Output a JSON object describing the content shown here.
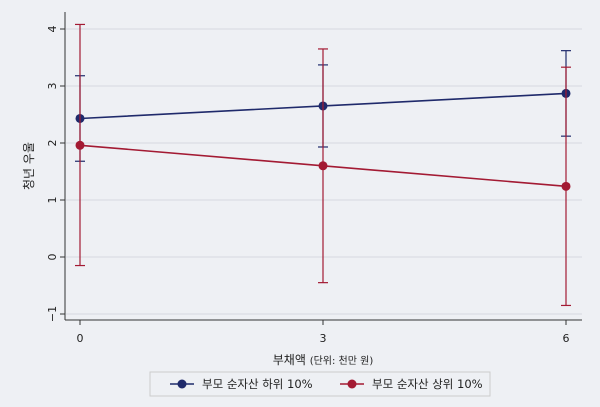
{
  "chart_data": {
    "type": "line",
    "title": "",
    "xlabel": "부채액",
    "xlabel_unit": "(단위: 천만 원)",
    "ylabel": "청년 우울",
    "x": [
      0,
      3,
      6
    ],
    "x_ticks": [
      "0",
      "3",
      "6"
    ],
    "y_ticks": [
      "-1",
      "0",
      "1",
      "2",
      "3",
      "4"
    ],
    "xlim": [
      0,
      6
    ],
    "ylim": [
      -1,
      4
    ],
    "grid": true,
    "legend_position": "bottom",
    "series": [
      {
        "name": "부모 순자산 하위 10%",
        "color": "#1f2a6b",
        "values": [
          2.43,
          2.65,
          2.87
        ],
        "ci_low": [
          1.68,
          1.93,
          2.12
        ],
        "ci_high": [
          3.18,
          3.37,
          3.62
        ]
      },
      {
        "name": "부모 순자산 상위 10%",
        "color": "#a31a33",
        "values": [
          1.96,
          1.6,
          1.24
        ],
        "ci_low": [
          -0.15,
          -0.45,
          -0.85
        ],
        "ci_high": [
          4.08,
          3.65,
          3.33
        ]
      }
    ]
  }
}
